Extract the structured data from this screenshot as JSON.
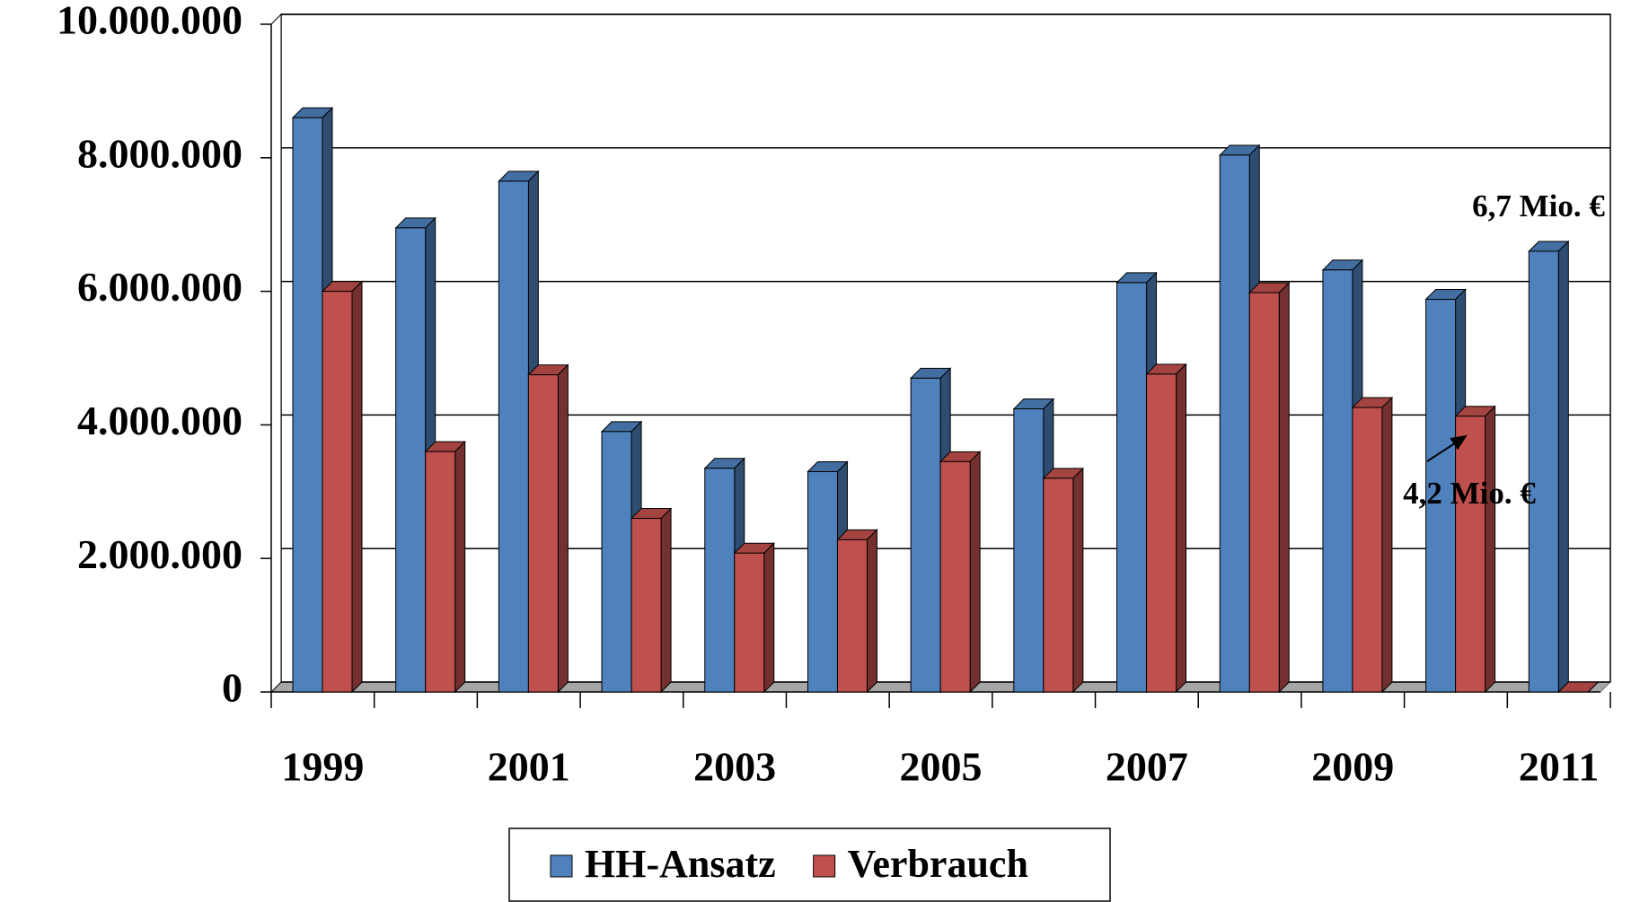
{
  "chart_data": {
    "type": "bar3d",
    "categories": [
      "1999",
      null,
      "2001",
      null,
      "2003",
      null,
      "2005",
      null,
      "2007",
      null,
      "2009",
      null,
      "2011"
    ],
    "series": [
      {
        "name": "HH-Ansatz",
        "color": "#4f81bd",
        "values": [
          8600000,
          6950000,
          7650000,
          3900000,
          3350000,
          3300000,
          4700000,
          4240000,
          6130000,
          8040000,
          6320000,
          5880000,
          6600000
        ]
      },
      {
        "name": "Verbrauch",
        "color": "#c0504d",
        "values": [
          6000000,
          3600000,
          4750000,
          2600000,
          2080000,
          2280000,
          3450000,
          3200000,
          4760000,
          5980000,
          4260000,
          4130000,
          0
        ]
      }
    ],
    "ylim": [
      0,
      10000000
    ],
    "yticks": [
      0,
      {
        "value": 2000000,
        "label": "2.000.000"
      },
      {
        "value": 4000000,
        "label": "4.000.000"
      },
      {
        "value": 6000000,
        "label": "6.000.000"
      },
      {
        "value": 8000000,
        "label": "8.000.000"
      },
      {
        "value": 10000000,
        "label": "10.000.000"
      }
    ],
    "grid": true,
    "legend": "bottom",
    "annotations": [
      "6,7 Mio. €",
      "4,2 Mio. €"
    ]
  }
}
